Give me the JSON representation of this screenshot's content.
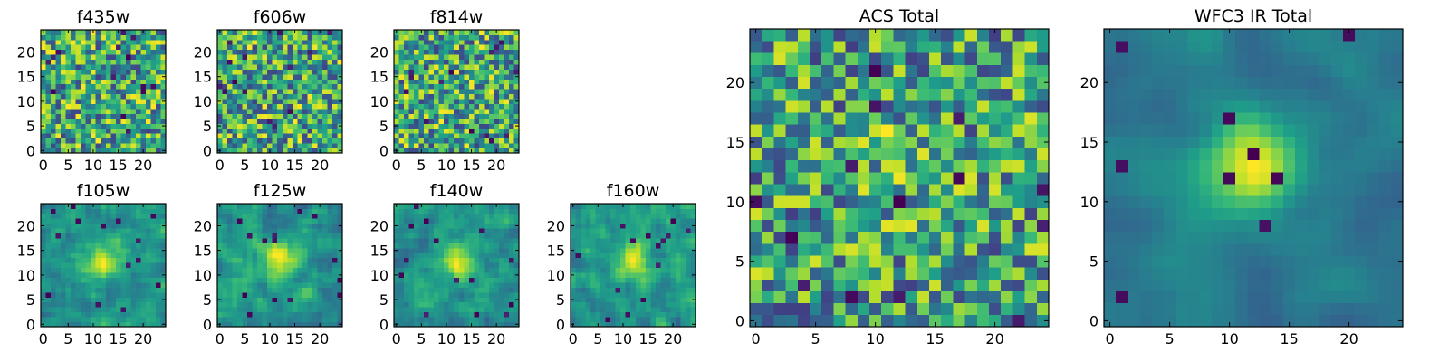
{
  "figure": {
    "colormap": "viridis",
    "colors": {
      "low": "#440154",
      "mid": "#21918c",
      "high": "#fde725"
    }
  },
  "chart_data": [
    {
      "type": "heatmap",
      "title": "f435w",
      "size": 25,
      "xticks": [
        0,
        5,
        10,
        15,
        20
      ],
      "yticks": [
        0,
        5,
        10,
        15,
        20
      ],
      "xlim": [
        0,
        24
      ],
      "ylim": [
        0,
        24
      ],
      "smoothness": 0,
      "blob": 0,
      "seed": 11,
      "values": []
    },
    {
      "type": "heatmap",
      "title": "f606w",
      "size": 25,
      "xticks": [
        0,
        5,
        10,
        15,
        20
      ],
      "yticks": [
        0,
        5,
        10,
        15,
        20
      ],
      "xlim": [
        0,
        24
      ],
      "ylim": [
        0,
        24
      ],
      "smoothness": 0,
      "blob": 0,
      "seed": 23,
      "values": []
    },
    {
      "type": "heatmap",
      "title": "f814w",
      "size": 25,
      "xticks": [
        0,
        5,
        10,
        15,
        20
      ],
      "yticks": [
        0,
        5,
        10,
        15,
        20
      ],
      "xlim": [
        0,
        24
      ],
      "ylim": [
        0,
        24
      ],
      "smoothness": 0,
      "blob": 0,
      "seed": 37,
      "values": []
    },
    {
      "type": "heatmap",
      "title": "f105w",
      "size": 25,
      "xticks": [
        0,
        5,
        10,
        15,
        20
      ],
      "yticks": [
        0,
        5,
        10,
        15,
        20
      ],
      "xlim": [
        0,
        24
      ],
      "ylim": [
        0,
        24
      ],
      "smoothness": 1,
      "blob": 0.45,
      "seed": 41,
      "values": []
    },
    {
      "type": "heatmap",
      "title": "f125w",
      "size": 25,
      "xticks": [
        0,
        5,
        10,
        15,
        20
      ],
      "yticks": [
        0,
        5,
        10,
        15,
        20
      ],
      "xlim": [
        0,
        24
      ],
      "ylim": [
        0,
        24
      ],
      "smoothness": 1,
      "blob": 0.4,
      "seed": 53,
      "values": []
    },
    {
      "type": "heatmap",
      "title": "f140w",
      "size": 25,
      "xticks": [
        0,
        5,
        10,
        15,
        20
      ],
      "yticks": [
        0,
        5,
        10,
        15,
        20
      ],
      "xlim": [
        0,
        24
      ],
      "ylim": [
        0,
        24
      ],
      "smoothness": 1,
      "blob": 0.4,
      "seed": 67,
      "values": []
    },
    {
      "type": "heatmap",
      "title": "f160w",
      "size": 25,
      "xticks": [
        0,
        5,
        10,
        15,
        20
      ],
      "yticks": [
        0,
        5,
        10,
        15,
        20
      ],
      "xlim": [
        0,
        24
      ],
      "ylim": [
        0,
        24
      ],
      "smoothness": 1,
      "blob": 0.4,
      "seed": 79,
      "values": []
    },
    {
      "type": "heatmap",
      "title": "ACS Total",
      "size": 25,
      "xticks": [
        0,
        5,
        10,
        15,
        20
      ],
      "yticks": [
        0,
        5,
        10,
        15,
        20
      ],
      "xlim": [
        0,
        24
      ],
      "ylim": [
        0,
        24
      ],
      "smoothness": 0,
      "blob": 0.1,
      "seed": 97,
      "values": []
    },
    {
      "type": "heatmap",
      "title": "WFC3 IR Total",
      "size": 25,
      "xticks": [
        0,
        5,
        10,
        15,
        20
      ],
      "yticks": [
        0,
        5,
        10,
        15,
        20
      ],
      "xlim": [
        0,
        24
      ],
      "ylim": [
        0,
        24
      ],
      "smoothness": 2,
      "blob": 0.8,
      "seed": 101,
      "values": []
    }
  ]
}
